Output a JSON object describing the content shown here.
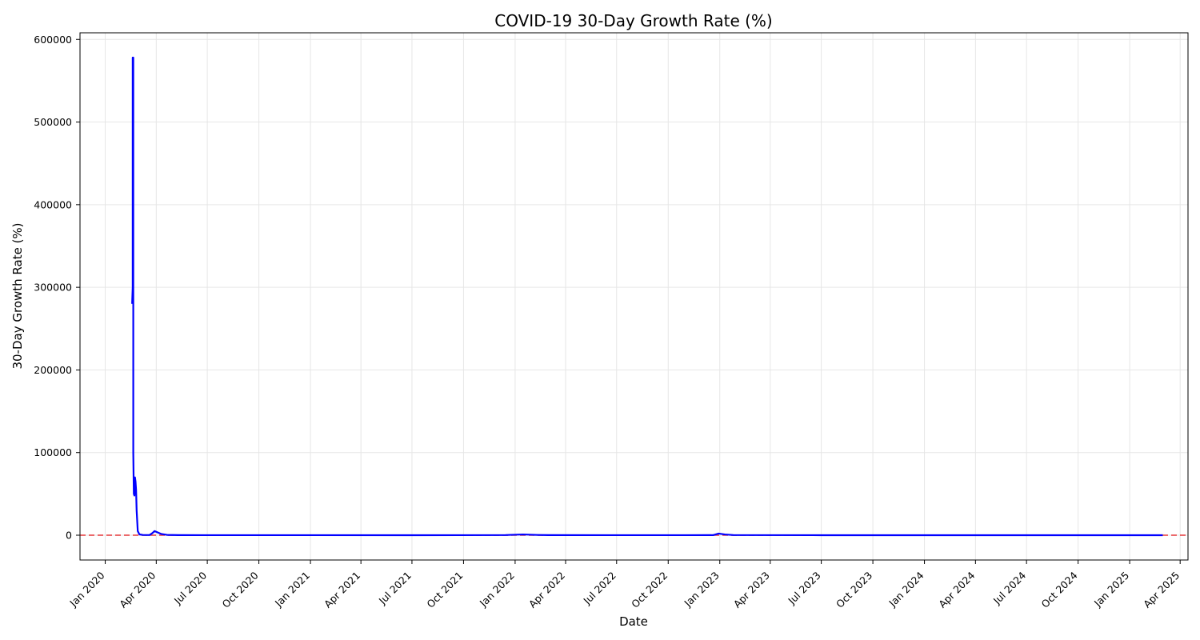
{
  "chart_data": {
    "type": "line",
    "title": "COVID-19 30-Day Growth Rate (%)",
    "xlabel": "Date",
    "ylabel": "30-Day Growth Rate (%)",
    "x_range": [
      "2019-11-17",
      "2025-04-15"
    ],
    "ylim": [
      -30000,
      608000
    ],
    "x_ticks": [
      "2020-01-01",
      "2020-04-01",
      "2020-07-01",
      "2020-10-01",
      "2021-01-01",
      "2021-04-01",
      "2021-07-01",
      "2021-10-01",
      "2022-01-01",
      "2022-04-01",
      "2022-07-01",
      "2022-10-01",
      "2023-01-01",
      "2023-04-01",
      "2023-07-01",
      "2023-10-01",
      "2024-01-01",
      "2024-04-01",
      "2024-07-01",
      "2024-10-01",
      "2025-01-01",
      "2025-04-01"
    ],
    "x_tick_labels": [
      "Jan 2020",
      "Apr 2020",
      "Jul 2020",
      "Oct 2020",
      "Jan 2021",
      "Apr 2021",
      "Jul 2021",
      "Oct 2021",
      "Jan 2022",
      "Apr 2022",
      "Jul 2022",
      "Oct 2022",
      "Jan 2023",
      "Apr 2023",
      "Jul 2023",
      "Oct 2023",
      "Jan 2024",
      "Apr 2024",
      "Jul 2024",
      "Oct 2024",
      "Jan 2025",
      "Apr 2025"
    ],
    "y_ticks": [
      0,
      100000,
      200000,
      300000,
      400000,
      500000,
      600000
    ],
    "y_tick_labels": [
      "0",
      "100000",
      "200000",
      "300000",
      "400000",
      "500000",
      "600000"
    ],
    "grid": true,
    "reference_line": {
      "y": 0,
      "color": "#e31a1c",
      "style": "dashed"
    },
    "series": [
      {
        "color": "#0000ff",
        "points": [
          [
            "2020-02-18",
            280000
          ],
          [
            "2020-02-19",
            300000
          ],
          [
            "2020-02-19",
            578000
          ],
          [
            "2020-02-20",
            578000
          ],
          [
            "2020-02-20",
            100000
          ],
          [
            "2020-02-21",
            50000
          ],
          [
            "2020-02-22",
            48000
          ],
          [
            "2020-02-23",
            70000
          ],
          [
            "2020-02-24",
            65000
          ],
          [
            "2020-02-25",
            55000
          ],
          [
            "2020-02-26",
            30000
          ],
          [
            "2020-02-28",
            5000
          ],
          [
            "2020-03-02",
            1000
          ],
          [
            "2020-03-08",
            300
          ],
          [
            "2020-03-20",
            200
          ],
          [
            "2020-03-25",
            2500
          ],
          [
            "2020-03-29",
            5000
          ],
          [
            "2020-04-03",
            3500
          ],
          [
            "2020-04-10",
            1500
          ],
          [
            "2020-04-20",
            400
          ],
          [
            "2020-05-10",
            150
          ],
          [
            "2020-07-01",
            80
          ],
          [
            "2020-10-01",
            60
          ],
          [
            "2021-01-01",
            50
          ],
          [
            "2021-07-01",
            40
          ],
          [
            "2021-12-15",
            200
          ],
          [
            "2022-01-15",
            900
          ],
          [
            "2022-02-10",
            300
          ],
          [
            "2022-03-01",
            100
          ],
          [
            "2022-07-01",
            60
          ],
          [
            "2022-11-01",
            50
          ],
          [
            "2022-12-20",
            100
          ],
          [
            "2022-12-30",
            2000
          ],
          [
            "2023-01-10",
            900
          ],
          [
            "2023-01-25",
            200
          ],
          [
            "2023-07-01",
            40
          ],
          [
            "2024-01-01",
            30
          ],
          [
            "2024-07-01",
            25
          ],
          [
            "2025-01-01",
            20
          ],
          [
            "2025-03-01",
            15
          ]
        ]
      }
    ]
  }
}
